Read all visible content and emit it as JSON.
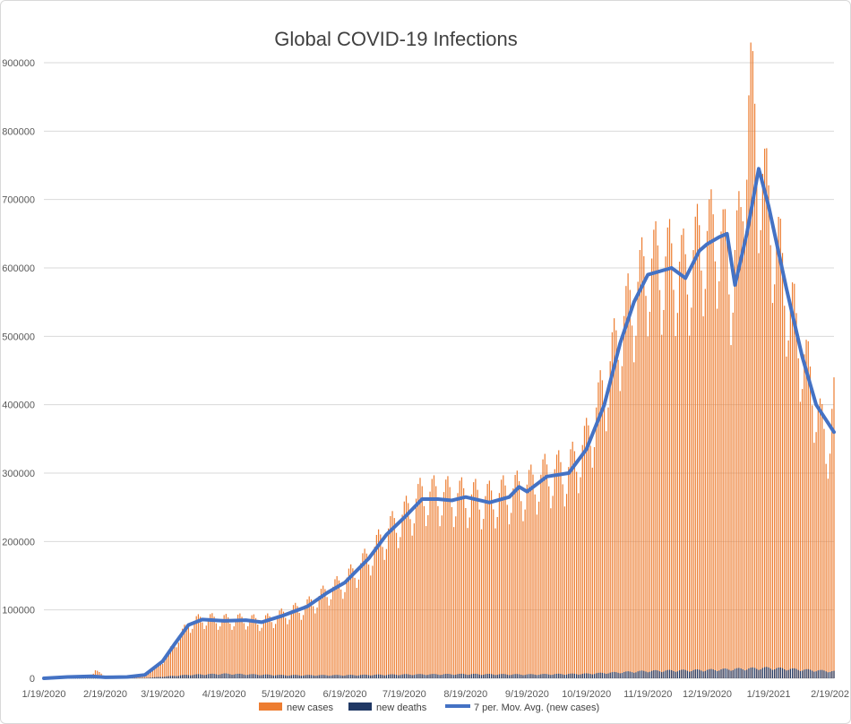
{
  "chart_data": {
    "type": "bar",
    "title": "Global COVID-19 Infections",
    "xlabel": "",
    "ylabel": "",
    "ylim": [
      0,
      900000
    ],
    "y_ticks": [
      "0",
      "100000",
      "200000",
      "300000",
      "400000",
      "500000",
      "600000",
      "700000",
      "800000",
      "900000"
    ],
    "x_tick_labels": [
      "1/19/2020",
      "2/19/2020",
      "3/19/2020",
      "4/19/2020",
      "5/19/2020",
      "6/19/2020",
      "7/19/2020",
      "8/19/2020",
      "9/19/2020",
      "10/19/2020",
      "11/19/2020",
      "12/19/2020",
      "1/19/2021",
      "2/19/202"
    ],
    "x_range": [
      "2020-01-19",
      "2021-02-21"
    ],
    "grid": true,
    "legend_position": "bottom",
    "series": [
      {
        "name": "new cases",
        "kind": "bar",
        "color": "#ED7D31",
        "points": [
          [
            "2020-01-19",
            0
          ],
          [
            "2020-01-31",
            2000
          ],
          [
            "2020-02-12",
            3000
          ],
          [
            "2020-02-14",
            13000
          ],
          [
            "2020-02-19",
            1500
          ],
          [
            "2020-03-01",
            2000
          ],
          [
            "2020-03-10",
            5000
          ],
          [
            "2020-03-19",
            25000
          ],
          [
            "2020-03-25",
            50000
          ],
          [
            "2020-04-01",
            78000
          ],
          [
            "2020-04-08",
            86000
          ],
          [
            "2020-04-19",
            84000
          ],
          [
            "2020-04-30",
            85000
          ],
          [
            "2020-05-08",
            82000
          ],
          [
            "2020-05-19",
            92000
          ],
          [
            "2020-05-31",
            105000
          ],
          [
            "2020-06-10",
            125000
          ],
          [
            "2020-06-19",
            140000
          ],
          [
            "2020-07-01",
            175000
          ],
          [
            "2020-07-10",
            210000
          ],
          [
            "2020-07-19",
            235000
          ],
          [
            "2020-07-28",
            265000
          ],
          [
            "2020-08-05",
            265000
          ],
          [
            "2020-08-19",
            262000
          ],
          [
            "2020-08-31",
            258000
          ],
          [
            "2020-09-10",
            268000
          ],
          [
            "2020-09-19",
            275000
          ],
          [
            "2020-09-29",
            295000
          ],
          [
            "2020-10-10",
            300000
          ],
          [
            "2020-10-19",
            340000
          ],
          [
            "2020-10-28",
            420000
          ],
          [
            "2020-11-05",
            500000
          ],
          [
            "2020-11-12",
            550000
          ],
          [
            "2020-11-19",
            595000
          ],
          [
            "2020-12-01",
            600000
          ],
          [
            "2020-12-08",
            585000
          ],
          [
            "2020-12-15",
            625000
          ],
          [
            "2020-12-19",
            635000
          ],
          [
            "2020-12-25",
            645000
          ],
          [
            "2020-12-31",
            580000
          ],
          [
            "2021-01-05",
            650000
          ],
          [
            "2021-01-08",
            810000
          ],
          [
            "2021-01-10",
            845000
          ],
          [
            "2021-01-14",
            740000
          ],
          [
            "2021-01-19",
            680000
          ],
          [
            "2021-01-28",
            560000
          ],
          [
            "2021-02-05",
            470000
          ],
          [
            "2021-02-12",
            400000
          ],
          [
            "2021-02-17",
            330000
          ],
          [
            "2021-02-21",
            400000
          ]
        ]
      },
      {
        "name": "new deaths",
        "kind": "bar",
        "color": "#203864",
        "points": [
          [
            "2020-01-19",
            0
          ],
          [
            "2020-03-10",
            500
          ],
          [
            "2020-04-01",
            5000
          ],
          [
            "2020-04-19",
            6500
          ],
          [
            "2020-05-19",
            4500
          ],
          [
            "2020-06-19",
            4500
          ],
          [
            "2020-07-19",
            5500
          ],
          [
            "2020-08-19",
            6000
          ],
          [
            "2020-09-19",
            5500
          ],
          [
            "2020-10-19",
            6500
          ],
          [
            "2020-11-19",
            10500
          ],
          [
            "2020-12-19",
            12000
          ],
          [
            "2021-01-19",
            15000
          ],
          [
            "2021-02-21",
            10000
          ]
        ]
      },
      {
        "name": "7 per. Mov. Avg. (new cases)",
        "kind": "line",
        "color": "#4472C4",
        "points": [
          [
            "2020-01-19",
            0
          ],
          [
            "2020-01-31",
            2000
          ],
          [
            "2020-02-12",
            3000
          ],
          [
            "2020-02-19",
            1500
          ],
          [
            "2020-03-01",
            2000
          ],
          [
            "2020-03-10",
            5000
          ],
          [
            "2020-03-19",
            25000
          ],
          [
            "2020-03-25",
            50000
          ],
          [
            "2020-04-01",
            78000
          ],
          [
            "2020-04-08",
            86000
          ],
          [
            "2020-04-19",
            84000
          ],
          [
            "2020-04-30",
            85000
          ],
          [
            "2020-05-08",
            82000
          ],
          [
            "2020-05-19",
            92000
          ],
          [
            "2020-05-31",
            105000
          ],
          [
            "2020-06-10",
            125000
          ],
          [
            "2020-06-19",
            140000
          ],
          [
            "2020-07-01",
            175000
          ],
          [
            "2020-07-10",
            210000
          ],
          [
            "2020-07-19",
            235000
          ],
          [
            "2020-07-28",
            262000
          ],
          [
            "2020-08-05",
            262000
          ],
          [
            "2020-08-12",
            260000
          ],
          [
            "2020-08-19",
            265000
          ],
          [
            "2020-08-31",
            257000
          ],
          [
            "2020-09-10",
            265000
          ],
          [
            "2020-09-15",
            280000
          ],
          [
            "2020-09-19",
            273000
          ],
          [
            "2020-09-29",
            295000
          ],
          [
            "2020-10-10",
            300000
          ],
          [
            "2020-10-19",
            335000
          ],
          [
            "2020-10-28",
            400000
          ],
          [
            "2020-11-05",
            490000
          ],
          [
            "2020-11-12",
            550000
          ],
          [
            "2020-11-19",
            590000
          ],
          [
            "2020-12-01",
            600000
          ],
          [
            "2020-12-08",
            585000
          ],
          [
            "2020-12-15",
            625000
          ],
          [
            "2020-12-19",
            635000
          ],
          [
            "2020-12-25",
            645000
          ],
          [
            "2020-12-29",
            650000
          ],
          [
            "2021-01-02",
            575000
          ],
          [
            "2021-01-08",
            650000
          ],
          [
            "2021-01-14",
            745000
          ],
          [
            "2021-01-19",
            690000
          ],
          [
            "2021-01-28",
            570000
          ],
          [
            "2021-02-05",
            470000
          ],
          [
            "2021-02-12",
            400000
          ],
          [
            "2021-02-21",
            360000
          ]
        ]
      }
    ]
  }
}
